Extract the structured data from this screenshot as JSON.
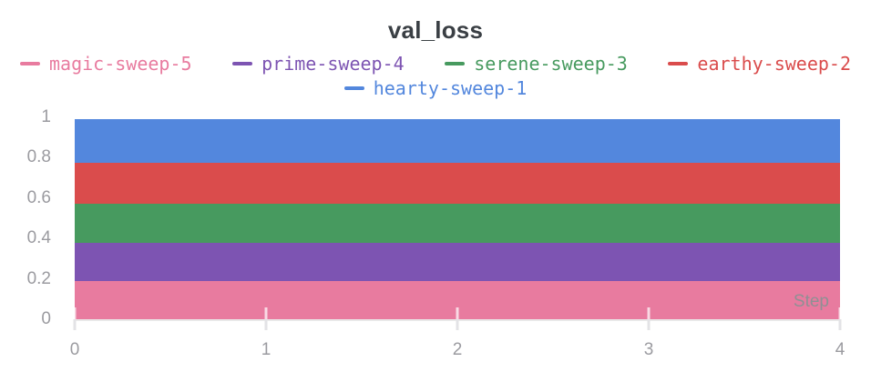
{
  "title": "val_loss",
  "ui_colors": {
    "title_text": "#3A3F44",
    "tick_text": "#9B9BA0",
    "step_label_text": "#8F9094",
    "axis_line": "#E9E9E9",
    "tick_mark_on_band": "rgba(255,255,255,0.72)",
    "tick_mark_below_axis": "#E3E3E6",
    "background": "#FFFFFF"
  },
  "legend": {
    "rows": [
      [
        "magic-sweep-5",
        "prime-sweep-4",
        "serene-sweep-3",
        "earthy-sweep-2"
      ],
      [
        "hearty-sweep-1"
      ]
    ]
  },
  "chart_data": {
    "type": "line",
    "style": "constant-value-thick-horizontal-bands",
    "title": "val_loss",
    "xlabel": "Step",
    "ylabel": "",
    "x": [
      0,
      1,
      2,
      3,
      4
    ],
    "xlim": [
      0,
      4
    ],
    "ylim": [
      0,
      1
    ],
    "x_tick_labels": [
      "0",
      "1",
      "2",
      "3",
      "4"
    ],
    "y_ticks": [
      0,
      0.2,
      0.4,
      0.6,
      0.8,
      1
    ],
    "y_tick_labels": [
      "0",
      "0.2",
      "0.4",
      "0.6",
      "0.8",
      "1"
    ],
    "grid": false,
    "legend_position": "top",
    "series": [
      {
        "name": "hearty-sweep-1",
        "color": "#5387DD",
        "values": [
          0.88,
          0.88,
          0.88,
          0.88,
          0.88
        ],
        "band": [
          0.775,
          0.99
        ]
      },
      {
        "name": "earthy-sweep-2",
        "color": "#DA4C4C",
        "values": [
          0.67,
          0.67,
          0.67,
          0.67,
          0.67
        ],
        "band": [
          0.573,
          0.775
        ]
      },
      {
        "name": "serene-sweep-3",
        "color": "#479A5F",
        "values": [
          0.48,
          0.48,
          0.48,
          0.48,
          0.48
        ],
        "band": [
          0.38,
          0.573
        ]
      },
      {
        "name": "prime-sweep-4",
        "color": "#7D54B2",
        "values": [
          0.29,
          0.29,
          0.29,
          0.29,
          0.29
        ],
        "band": [
          0.19,
          0.38
        ]
      },
      {
        "name": "magic-sweep-5",
        "color": "#E87B9F",
        "values": [
          0.1,
          0.1,
          0.1,
          0.1,
          0.1
        ],
        "band": [
          0.0,
          0.19
        ]
      }
    ]
  }
}
